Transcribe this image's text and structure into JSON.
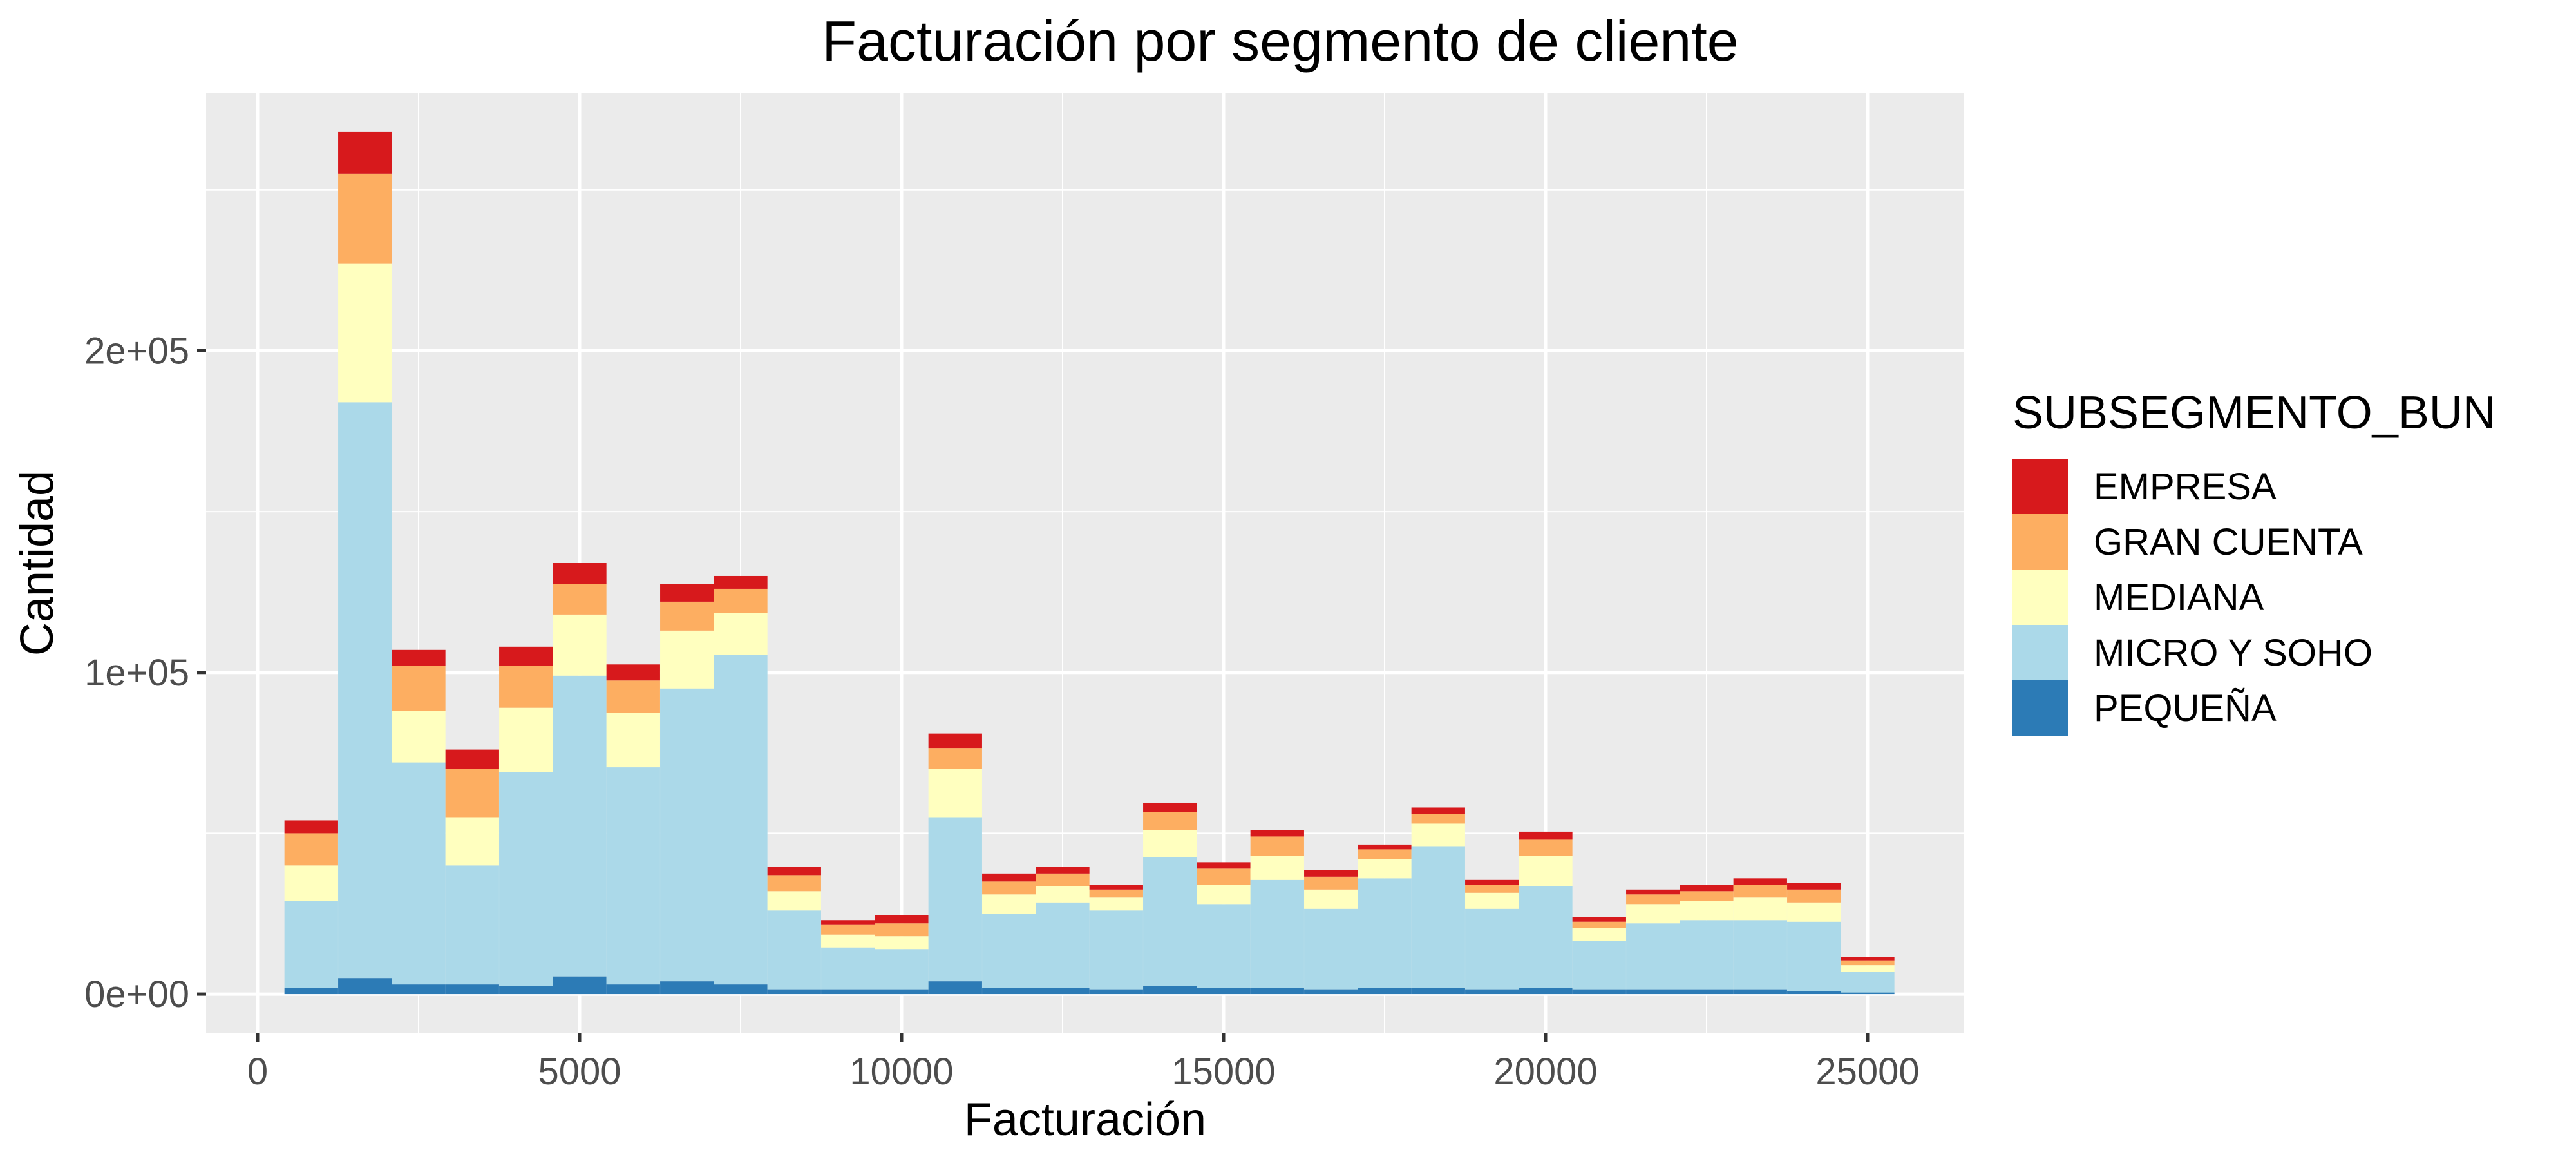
{
  "chart_data": {
    "type": "bar",
    "stacked": true,
    "title": "Facturación por segmento de cliente",
    "xlabel": "Facturación",
    "ylabel": "Cantidad",
    "xlim": [
      -800,
      26500
    ],
    "ylim": [
      -12000,
      280000
    ],
    "bin_width": 833,
    "x_ticks": [
      0,
      5000,
      10000,
      15000,
      20000,
      25000
    ],
    "x_tick_labels": [
      "0",
      "5000",
      "10000",
      "15000",
      "20000",
      "25000"
    ],
    "y_ticks": [
      0,
      100000,
      200000
    ],
    "y_tick_labels": [
      "0e+00",
      "1e+05",
      "2e+05"
    ],
    "grid": true,
    "legend": {
      "title": "SUBSEGMENTO_BUN",
      "placement": "right"
    },
    "x": [
      833,
      1667,
      2500,
      3333,
      4167,
      5000,
      5833,
      6667,
      7500,
      8333,
      9167,
      10000,
      10833,
      11667,
      12500,
      13333,
      14167,
      15000,
      15833,
      16667,
      17500,
      18333,
      19167,
      20000,
      20833,
      21667,
      22500,
      23333,
      24167,
      25000
    ],
    "series": [
      {
        "name": "PEQUEÑA",
        "color": "#2C7BB6",
        "values": [
          2000,
          5000,
          3000,
          3000,
          2500,
          5500,
          3000,
          4000,
          3000,
          1500,
          1500,
          1500,
          4000,
          2000,
          2000,
          1500,
          2500,
          2000,
          2000,
          1500,
          2000,
          2000,
          1500,
          2000,
          1500,
          1500,
          1500,
          1500,
          1000,
          500
        ]
      },
      {
        "name": "MICRO Y SOHO",
        "color": "#ABD9E9",
        "values": [
          27000,
          179000,
          69000,
          37000,
          66500,
          93500,
          67500,
          91000,
          102500,
          24500,
          13000,
          12500,
          51000,
          23000,
          26500,
          24500,
          40000,
          26000,
          33500,
          25000,
          34000,
          44000,
          25000,
          31500,
          15000,
          20500,
          21500,
          21500,
          21500,
          6500
        ]
      },
      {
        "name": "MEDIANA",
        "color": "#FFFFBF",
        "values": [
          11000,
          43000,
          16000,
          15000,
          20000,
          19000,
          17000,
          18000,
          13000,
          6000,
          4000,
          4000,
          15000,
          6000,
          5000,
          4000,
          8500,
          6000,
          7500,
          6000,
          6000,
          7000,
          5000,
          9500,
          4000,
          6000,
          6000,
          7000,
          6000,
          2000
        ]
      },
      {
        "name": "GRAN CUENTA",
        "color": "#FDAE61",
        "values": [
          10000,
          28000,
          14000,
          15000,
          13000,
          9500,
          10000,
          9000,
          7500,
          5000,
          3000,
          4000,
          6500,
          4000,
          4000,
          2500,
          5500,
          5000,
          6000,
          4000,
          3000,
          3000,
          2500,
          5000,
          2000,
          3000,
          3000,
          4000,
          4000,
          1500
        ]
      },
      {
        "name": "EMPRESA",
        "color": "#D7191C",
        "values": [
          4000,
          13000,
          5000,
          6000,
          6000,
          6500,
          5000,
          5500,
          4000,
          2500,
          1500,
          2500,
          4500,
          2500,
          2000,
          1500,
          3000,
          2000,
          2000,
          2000,
          1500,
          2000,
          1500,
          2500,
          1500,
          1500,
          2000,
          2000,
          2000,
          1000
        ]
      }
    ]
  }
}
